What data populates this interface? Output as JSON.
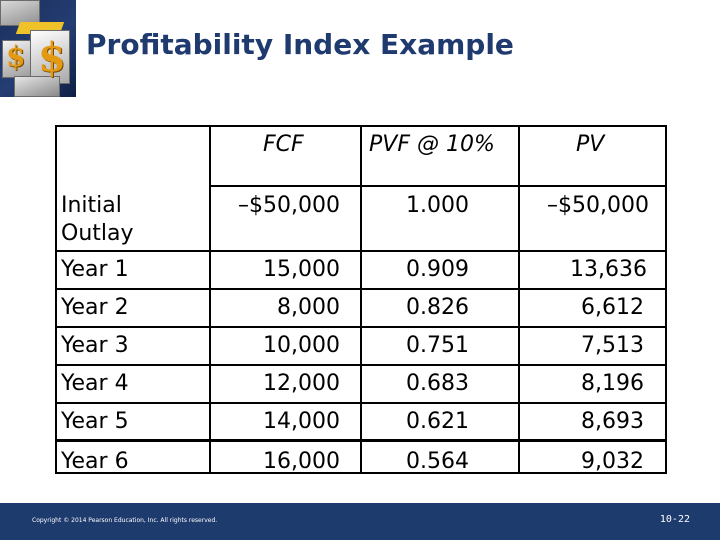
{
  "title": "Profitability Index Example",
  "table": {
    "headers": [
      "",
      "FCF",
      "PVF @ 10%",
      "PV"
    ],
    "rows": [
      {
        "label": "Initial Outlay",
        "fcf": "–$50,000",
        "pvf": "1.000",
        "pv": "–$50,000"
      },
      {
        "label": "Year 1",
        "fcf": "15,000",
        "pvf": "0.909",
        "pv": "13,636"
      },
      {
        "label": "Year 2",
        "fcf": "8,000",
        "pvf": "0.826",
        "pv": "6,612"
      },
      {
        "label": "Year 3",
        "fcf": "10,000",
        "pvf": "0.751",
        "pv": "7,513"
      },
      {
        "label": "Year 4",
        "fcf": "12,000",
        "pvf": "0.683",
        "pv": "8,196"
      },
      {
        "label": "Year 5",
        "fcf": "14,000",
        "pvf": "0.621",
        "pv": "8,693"
      },
      {
        "label": "Year 6",
        "fcf": "16,000",
        "pvf": "0.564",
        "pv": "9,032"
      }
    ]
  },
  "footer": {
    "copyright": "Copyright © 2014 Pearson Education, Inc. All rights reserved.",
    "page_number": "10-22"
  },
  "colors": {
    "title": "#1f3a6e",
    "footer_bg": "#1e3b6e"
  }
}
